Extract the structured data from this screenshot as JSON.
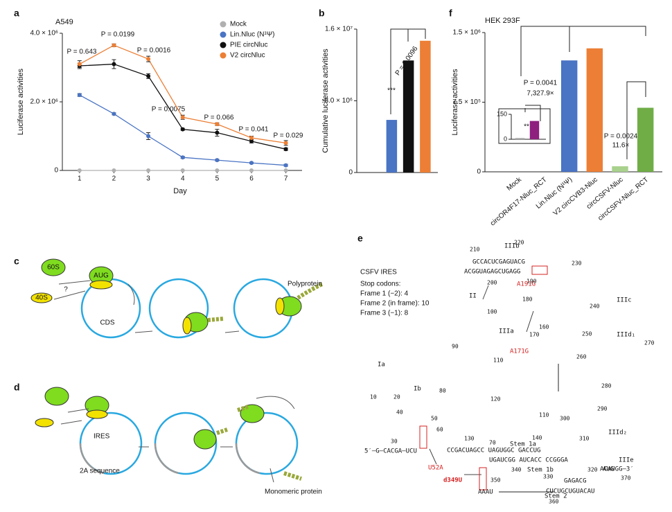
{
  "panels": [
    "a",
    "b",
    "f",
    "c",
    "d",
    "e"
  ],
  "chart_data": [
    {
      "type": "line",
      "title": "A549",
      "xlabel": "Day",
      "ylabel": "Luciferase activities",
      "x": [
        1,
        2,
        3,
        4,
        5,
        6,
        7
      ],
      "xlim": [
        0.5,
        7.35
      ],
      "xticks": [
        1,
        2,
        3,
        4,
        5,
        6,
        7
      ],
      "ylim": [
        0,
        4000000
      ],
      "yticks": [
        0,
        {
          "value": 2000000,
          "label": "2.0 × 10⁶"
        },
        {
          "value": 4000000,
          "label": "4.0 × 10⁶"
        }
      ],
      "series": [
        {
          "name": "Mock",
          "color": "#b0b0b0",
          "values": [
            0,
            0,
            0,
            0,
            0,
            0,
            0
          ]
        },
        {
          "name": "Lin.Nluc (N¹Ψ)",
          "color": "#4a74c4",
          "values": [
            2200000,
            1650000,
            1000000,
            380000,
            300000,
            220000,
            150000
          ],
          "errors": [
            40000,
            30000,
            100000,
            30000,
            25000,
            20000,
            30000
          ]
        },
        {
          "name": "PIE circNluc",
          "color": "#111111",
          "values": [
            3050000,
            3100000,
            2750000,
            1200000,
            1100000,
            850000,
            620000
          ],
          "errors": [
            80000,
            130000,
            70000,
            30000,
            100000,
            50000,
            40000
          ]
        },
        {
          "name": "V2 circNluc",
          "color": "#ec7f35",
          "values": [
            3100000,
            3650000,
            3250000,
            1550000,
            1350000,
            950000,
            800000
          ],
          "errors": [
            100000,
            40000,
            80000,
            60000,
            40000,
            50000,
            70000
          ]
        }
      ],
      "annotations": [
        "P = 0.643",
        "P = 0.0199",
        "P = 0.0016",
        "P = 0.0075",
        "P = 0.066",
        "P = 0.041",
        "P = 0.029"
      ]
    },
    {
      "type": "bar",
      "ylabel": "Cumulative luciferase activities",
      "categories": [
        null,
        null,
        null,
        null
      ],
      "values": [
        0,
        5870000,
        12500000,
        14700000
      ],
      "colors": [
        "#b0b0b0",
        "#4a74c4",
        "#111111",
        "#ec7f35"
      ],
      "ylim": [
        0,
        16000000
      ],
      "yticks": [
        0,
        {
          "value": 8000000,
          "label": "8.0 × 10⁶"
        },
        {
          "value": 16000000,
          "label": "1.6 × 10⁷"
        }
      ],
      "annotations": [
        "***",
        "P = 0.0096"
      ]
    },
    {
      "type": "bar",
      "title": "HEK 293F",
      "ylabel": "Luciferase activities",
      "categories": [
        "Mock",
        "circOR4F17-Nluc_RCT",
        "Lin.Nluc (N¹Ψ)",
        "V2 circCVB3-Nluc",
        "circCSFV-Nluc",
        "circCSFV-Nluc_RCT"
      ],
      "values": [
        0,
        0,
        1200000,
        1330000,
        60000,
        690000
      ],
      "colors": [
        "#b0b0b0",
        "#b0b0b0",
        "#4a74c4",
        "#ec7f35",
        "#a9d18e",
        "#70ad47"
      ],
      "ylim": [
        0,
        1500000
      ],
      "yticks": [
        0,
        {
          "value": 750000,
          "label": "7.5 × 10⁵"
        },
        {
          "value": 1500000,
          "label": "1.5 × 10⁶"
        }
      ],
      "annotations": [
        "P = 0.0041",
        "7,327.9×",
        "P = 0.0024",
        "11.6×"
      ]
    },
    {
      "type": "bar",
      "categories": [
        null,
        null
      ],
      "values": [
        8,
        110
      ],
      "colors": [
        "#b0b0b0",
        "#8e1f7e"
      ],
      "ylim": [
        0,
        150
      ],
      "yticks": [
        0,
        150
      ],
      "annotations": [
        "**"
      ]
    }
  ],
  "diagram_c": {
    "labels": [
      "60S",
      "40S",
      "?",
      "AUG",
      "CDS",
      "Polyprotein"
    ]
  },
  "diagram_d": {
    "labels": [
      "IRES",
      "2A sequence",
      "Monomeric protein"
    ]
  },
  "diagram_e": {
    "title": "CSFV IRES",
    "legend": [
      "Stop codons:",
      "Frame 1 (−2): 4",
      "Frame 2 (in frame): 10",
      "Frame 3 (−1): 8"
    ],
    "mutations": [
      "A191G",
      "A171G",
      "U52A",
      "d349U"
    ],
    "domains": [
      "IIIb",
      "IIIc",
      "II",
      "IIIa",
      "IIId₁",
      "IIId₂",
      "IIIe",
      "Ia",
      "Ib",
      "Stem 1a",
      "Stem 1b",
      "Stem 2",
      "AUG"
    ],
    "numbers": [
      "210",
      "220",
      "230",
      "200",
      "190",
      "240",
      "180",
      "100",
      "170",
      "160",
      "250",
      "270",
      "90",
      "110",
      "260",
      "280",
      "10",
      "20",
      "80",
      "120",
      "290",
      "40",
      "50",
      "60",
      "300",
      "110",
      "30",
      "130",
      "70",
      "140",
      "310",
      "320",
      "330",
      "340",
      "350",
      "360",
      "370"
    ],
    "sequences": [
      "ACGGUAGAGCUGAGG",
      "GCCACUCGAGUACG",
      "5′–G–CACGA–UCU",
      "CCGACUAGCC UAGUGGC GACCUG",
      "UGAUCGG AUCACC CCGGGA",
      "AAAU",
      "CUCUGCUGUACAU",
      "GAGACG",
      "ACAUGG–3′"
    ]
  }
}
